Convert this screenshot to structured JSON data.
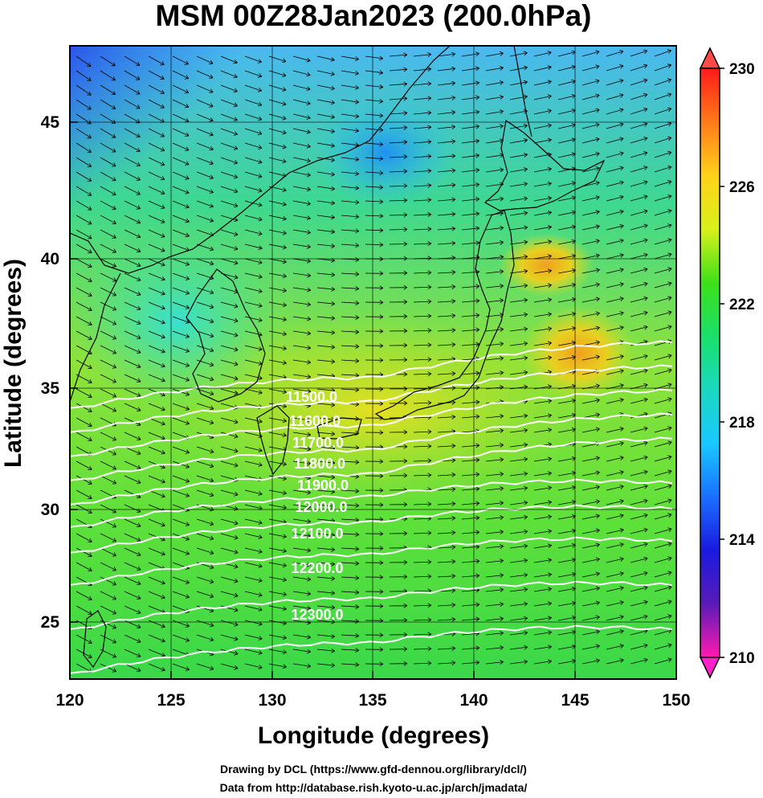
{
  "title": "MSM 00Z28Jan2023 (200.0hPa)",
  "xlabel": "Longitude (degrees)",
  "ylabel": "Latitude  (degrees)",
  "x_ticks": [
    "120",
    "125",
    "130",
    "135",
    "140",
    "145",
    "150"
  ],
  "y_ticks": [
    "25",
    "30",
    "35",
    "40",
    "45"
  ],
  "contour_labels": [
    "11500.0",
    "11600.0",
    "11700.0",
    "11800.0",
    "11900.0",
    "12000.0",
    "12100.0",
    "12200.0",
    "12300.0"
  ],
  "colorbar": {
    "labels": [
      "230",
      "226",
      "222",
      "218",
      "214",
      "210"
    ],
    "stops": [
      "#ff1a1a",
      "#ff7a1a",
      "#ffd21a",
      "#d8f01a",
      "#3ee01a",
      "#1ae06a",
      "#1ad8c0",
      "#1ac8ff",
      "#1a70ff",
      "#1a1ae0",
      "#5a1ab8",
      "#ff1ab0"
    ]
  },
  "credits": {
    "line1": "Drawing by DCL (https://www.gfd-dennou.org/library/dcl/)",
    "line2": "Data from http://database.rish.kyoto-u.ac.jp/arch/jmadata/"
  }
}
